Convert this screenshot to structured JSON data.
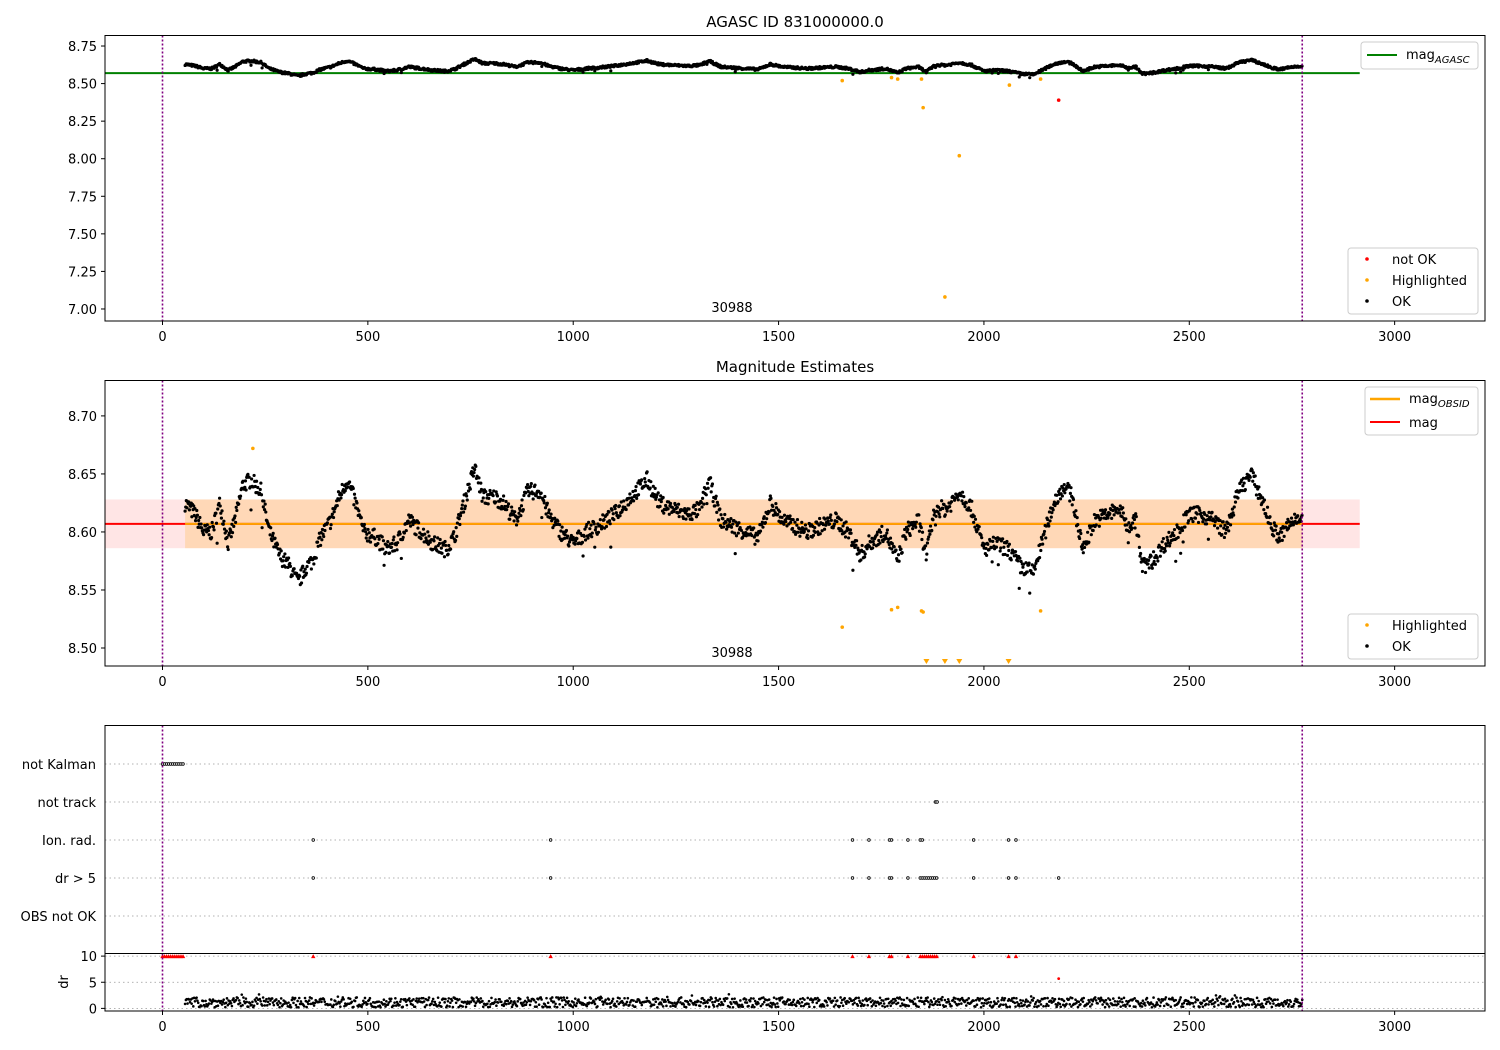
{
  "chart_data": [
    {
      "type": "scatter",
      "title": "AGASC ID 831000000.0",
      "xlim": [
        -140,
        3220
      ],
      "ylim": [
        6.92,
        8.82
      ],
      "xticks": [
        0,
        500,
        1000,
        1500,
        2000,
        2500,
        3000
      ],
      "yticks": [
        7.0,
        7.25,
        7.5,
        7.75,
        8.0,
        8.25,
        8.5,
        8.75
      ],
      "ytick_labels": [
        "7.00",
        "7.25",
        "7.50",
        "7.75",
        "8.00",
        "8.25",
        "8.50",
        "8.75"
      ],
      "vlines": [
        0,
        2775
      ],
      "hline": {
        "name": "mag_AGASC",
        "value": 8.57,
        "xrange": [
          -140,
          2915
        ],
        "color": "#008000"
      },
      "obsid_label": {
        "text": "30988",
        "x": 1385,
        "y": 6.95
      },
      "legend_top": [
        {
          "label": "mag",
          "sub": "AGASC",
          "color": "#008000"
        }
      ],
      "legend_bottom": [
        {
          "label": "not OK",
          "color": "#ff0000"
        },
        {
          "label": "Highlighted",
          "color": "#ffa500"
        },
        {
          "label": "OK",
          "color": "#000000"
        }
      ],
      "highlighted": [
        [
          1655,
          8.52
        ],
        [
          1775,
          8.54
        ],
        [
          1790,
          8.53
        ],
        [
          1848,
          8.53
        ],
        [
          1852,
          8.34
        ],
        [
          1905,
          7.08
        ],
        [
          1940,
          8.02
        ],
        [
          2062,
          8.49
        ],
        [
          2138,
          8.53
        ]
      ],
      "not_ok": [
        [
          2182,
          8.39
        ]
      ]
    },
    {
      "type": "scatter",
      "title": "Magnitude Estimates",
      "xlim": [
        -140,
        3220
      ],
      "ylim": [
        8.4845,
        8.7305
      ],
      "xticks": [
        0,
        500,
        1000,
        1500,
        2000,
        2500,
        3000
      ],
      "yticks": [
        8.5,
        8.55,
        8.6,
        8.65,
        8.7
      ],
      "ytick_labels": [
        "8.50",
        "8.55",
        "8.60",
        "8.65",
        "8.70"
      ],
      "vlines": [
        0,
        2775
      ],
      "mag": {
        "value": 8.607,
        "band": [
          8.586,
          8.628
        ],
        "xrange": [
          -140,
          2915
        ],
        "color": "#ff0000"
      },
      "mag_obsid": {
        "value": 8.607,
        "band": [
          8.586,
          8.628
        ],
        "xrange": [
          55,
          2775
        ],
        "color": "#ffa500"
      },
      "obsid_label": {
        "text": "30988",
        "x": 1385,
        "y": 8.488
      },
      "legend_top": [
        {
          "label": "mag",
          "sub": "OBSID",
          "color": "#ffa500"
        },
        {
          "label": "mag",
          "sub": "",
          "color": "#ff0000"
        }
      ],
      "legend_bottom": [
        {
          "label": "Highlighted",
          "color": "#ffa500"
        },
        {
          "label": "OK",
          "color": "#000000"
        }
      ],
      "highlighted": [
        [
          220,
          8.672
        ],
        [
          1655,
          8.518
        ],
        [
          1775,
          8.533
        ],
        [
          1790,
          8.535
        ],
        [
          1848,
          8.532
        ],
        [
          1852,
          8.531
        ],
        [
          2138,
          8.532
        ]
      ],
      "offscale_low": [
        1860,
        1905,
        1940,
        2060
      ]
    },
    {
      "type": "scatter",
      "title": "",
      "xlim": [
        -140,
        3220
      ],
      "xticks": [
        0,
        500,
        1000,
        1500,
        2000,
        2500,
        3000
      ],
      "vlines": [
        0,
        2775
      ],
      "flag_rows": [
        "not Kalman",
        "not track",
        "Ion. rad.",
        "dr > 5",
        "OBS not OK"
      ],
      "flags": {
        "not Kalman": [
          0,
          5,
          10,
          15,
          20,
          25,
          30,
          35,
          40,
          45,
          50
        ],
        "not track": [
          1882,
          1886
        ],
        "Ion. rad.": [
          367,
          945,
          1680,
          1720,
          1770,
          1775,
          1815,
          1845,
          1850,
          1975,
          2060,
          2078
        ],
        "dr > 5": [
          367,
          945,
          1680,
          1720,
          1770,
          1775,
          1815,
          1845,
          1850,
          1855,
          1860,
          1865,
          1870,
          1875,
          1880,
          1885,
          1975,
          2060,
          2078,
          2182
        ],
        "OBS not OK": []
      },
      "dr_ylim": [
        -0.5,
        10.5
      ],
      "dr_yticks": [
        0,
        5,
        10
      ],
      "dr_ylabel": "dr",
      "dr_capped": [
        0,
        5,
        10,
        15,
        20,
        25,
        30,
        35,
        40,
        45,
        50,
        367,
        945,
        1680,
        1720,
        1770,
        1775,
        1815,
        1845,
        1850,
        1855,
        1860,
        1865,
        1870,
        1875,
        1880,
        1885,
        1975,
        2060,
        2078
      ],
      "dr_extra": [
        [
          2182,
          5.7
        ]
      ]
    }
  ]
}
